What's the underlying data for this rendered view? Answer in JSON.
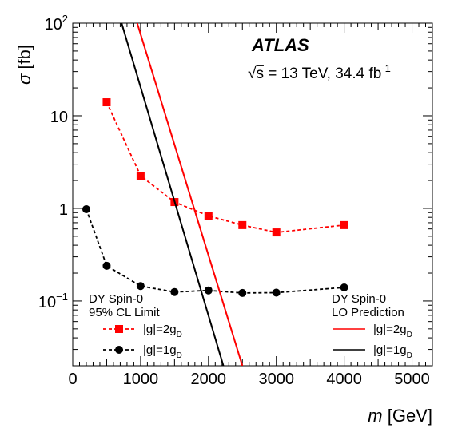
{
  "chart_data": {
    "type": "line",
    "experiment_label": "ATLAS",
    "energy_label": {
      "sqrt_symbol": "√",
      "s_letter": "s",
      "text": " = 13 TeV, 34.4 fb",
      "superscript": "-1"
    },
    "xlabel": {
      "symbol": "m",
      "unit": "[GeV]"
    },
    "ylabel": {
      "symbol": "σ",
      "unit": "[fb]"
    },
    "xlim": [
      0,
      5300
    ],
    "ylim": [
      0.02,
      100
    ],
    "y_scale": "log",
    "x_ticks": [
      {
        "value": 0,
        "label": "0"
      },
      {
        "value": 1000,
        "label": "1000"
      },
      {
        "value": 2000,
        "label": "2000"
      },
      {
        "value": 3000,
        "label": "3000"
      },
      {
        "value": 4000,
        "label": "4000"
      },
      {
        "value": 5000,
        "label": "5000"
      }
    ],
    "y_ticks": [
      {
        "value": 100,
        "base": "10",
        "exp": "2"
      },
      {
        "value": 10,
        "base": "10",
        "exp": ""
      },
      {
        "value": 1,
        "base": "1",
        "exp": ""
      },
      {
        "value": 0.1,
        "base": "10",
        "exp": "−1"
      }
    ],
    "legends": {
      "limit": {
        "title_lines": [
          "DY Spin-0",
          "95% CL Limit"
        ],
        "entries": [
          {
            "series": 0,
            "text": "|g|=2g",
            "sub": "D"
          },
          {
            "series": 1,
            "text": "|g|=1g",
            "sub": "D"
          }
        ]
      },
      "prediction": {
        "title_lines": [
          "DY Spin-0",
          "LO Prediction"
        ],
        "entries": [
          {
            "series": 2,
            "text": "|g|=2g",
            "sub": "D"
          },
          {
            "series": 3,
            "text": "|g|=1g",
            "sub": "D"
          }
        ]
      }
    },
    "series": [
      {
        "kind": "limit",
        "color": "#ff0000",
        "marker": "square",
        "x": [
          500,
          1000,
          1500,
          2000,
          2500,
          3000,
          4000
        ],
        "y": [
          14,
          2.25,
          1.17,
          0.83,
          0.66,
          0.55,
          0.66
        ]
      },
      {
        "kind": "limit",
        "color": "#000000",
        "marker": "circle",
        "x": [
          200,
          500,
          1000,
          1500,
          2000,
          2500,
          3000,
          4000
        ],
        "y": [
          0.98,
          0.24,
          0.145,
          0.125,
          0.13,
          0.122,
          0.123,
          0.14
        ]
      },
      {
        "kind": "prediction",
        "color": "#ff0000",
        "x": [
          950,
          2500
        ],
        "y": [
          100,
          0.02
        ]
      },
      {
        "kind": "prediction",
        "color": "#000000",
        "x": [
          720,
          2220
        ],
        "y": [
          100,
          0.02
        ]
      }
    ]
  }
}
